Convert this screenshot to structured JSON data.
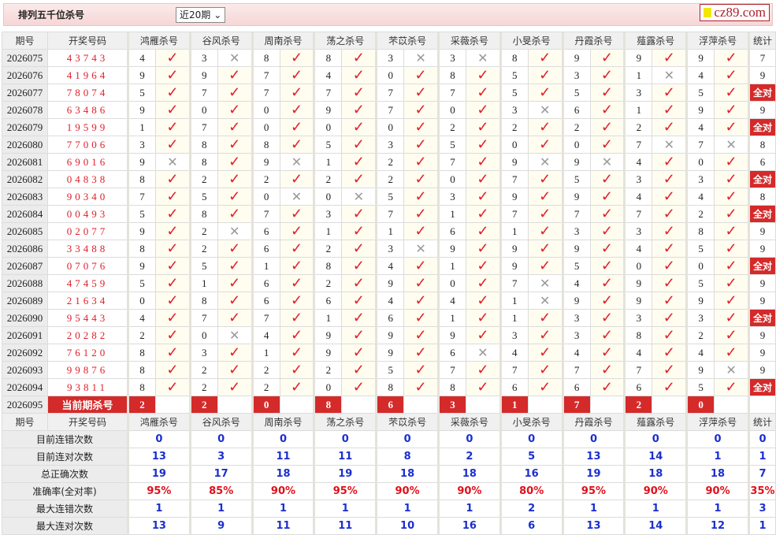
{
  "header": {
    "title": "排列五千位杀号",
    "period_select": "近20期",
    "logo": "cz89.com"
  },
  "columns": {
    "period": "期号",
    "draw": "开奖号码",
    "stat": "统计",
    "predictors": [
      "鸿雁杀号",
      "谷风杀号",
      "周南杀号",
      "荡之杀号",
      "芣苡杀号",
      "采薇杀号",
      "小旻杀号",
      "丹霞杀号",
      "薤露杀号",
      "浮萍杀号"
    ]
  },
  "marks": {
    "hit": "✓",
    "miss": "✕"
  },
  "all_correct_label": "全对",
  "rows": [
    {
      "period": "2026075",
      "draw": "43743",
      "kills": [
        4,
        3,
        8,
        8,
        3,
        3,
        8,
        9,
        9,
        9
      ],
      "hits": "1011001111",
      "stat": "7"
    },
    {
      "period": "2026076",
      "draw": "41964",
      "kills": [
        9,
        9,
        7,
        4,
        0,
        8,
        5,
        3,
        1,
        4
      ],
      "hits": "1111111101",
      "stat": "9"
    },
    {
      "period": "2026077",
      "draw": "78074",
      "kills": [
        5,
        7,
        7,
        7,
        7,
        7,
        5,
        5,
        3,
        5
      ],
      "hits": "1111111111",
      "stat": "全对"
    },
    {
      "period": "2026078",
      "draw": "63486",
      "kills": [
        9,
        0,
        0,
        9,
        7,
        0,
        3,
        6,
        1,
        9
      ],
      "hits": "1111110111",
      "stat": "9"
    },
    {
      "period": "2026079",
      "draw": "19599",
      "kills": [
        1,
        7,
        0,
        0,
        0,
        2,
        2,
        2,
        2,
        4
      ],
      "hits": "1111111111",
      "stat": "全对"
    },
    {
      "period": "2026080",
      "draw": "77006",
      "kills": [
        3,
        8,
        8,
        5,
        3,
        5,
        0,
        0,
        7,
        7
      ],
      "hits": "1111111100",
      "stat": "8"
    },
    {
      "period": "2026081",
      "draw": "69016",
      "kills": [
        9,
        8,
        9,
        1,
        2,
        7,
        9,
        9,
        4,
        0
      ],
      "hits": "0101110011",
      "stat": "6"
    },
    {
      "period": "2026082",
      "draw": "04838",
      "kills": [
        8,
        2,
        2,
        2,
        2,
        0,
        7,
        5,
        3,
        3
      ],
      "hits": "1111111111",
      "stat": "全对"
    },
    {
      "period": "2026083",
      "draw": "90340",
      "kills": [
        7,
        5,
        0,
        0,
        5,
        3,
        9,
        9,
        4,
        4
      ],
      "hits": "1100111111",
      "stat": "8"
    },
    {
      "period": "2026084",
      "draw": "00493",
      "kills": [
        5,
        8,
        7,
        3,
        7,
        1,
        7,
        7,
        7,
        2
      ],
      "hits": "1111111111",
      "stat": "全对"
    },
    {
      "period": "2026085",
      "draw": "02077",
      "kills": [
        9,
        2,
        6,
        1,
        1,
        6,
        1,
        3,
        3,
        8
      ],
      "hits": "1011111111",
      "stat": "9"
    },
    {
      "period": "2026086",
      "draw": "33488",
      "kills": [
        8,
        2,
        6,
        2,
        3,
        9,
        9,
        9,
        4,
        5
      ],
      "hits": "1111011111",
      "stat": "9"
    },
    {
      "period": "2026087",
      "draw": "07076",
      "kills": [
        9,
        5,
        1,
        8,
        4,
        1,
        9,
        5,
        0,
        0
      ],
      "hits": "1111111111",
      "stat": "全对"
    },
    {
      "period": "2026088",
      "draw": "47459",
      "kills": [
        5,
        1,
        6,
        2,
        9,
        0,
        7,
        4,
        9,
        5
      ],
      "hits": "1111110111",
      "stat": "9"
    },
    {
      "period": "2026089",
      "draw": "21634",
      "kills": [
        0,
        8,
        6,
        6,
        4,
        4,
        1,
        9,
        9,
        9
      ],
      "hits": "1111110111",
      "stat": "9"
    },
    {
      "period": "2026090",
      "draw": "95443",
      "kills": [
        4,
        7,
        7,
        1,
        6,
        1,
        1,
        3,
        3,
        3
      ],
      "hits": "1111111111",
      "stat": "全对"
    },
    {
      "period": "2026091",
      "draw": "20282",
      "kills": [
        2,
        0,
        4,
        9,
        9,
        9,
        3,
        3,
        8,
        2
      ],
      "hits": "1011111111",
      "stat": "9"
    },
    {
      "period": "2026092",
      "draw": "76120",
      "kills": [
        8,
        3,
        1,
        9,
        9,
        6,
        4,
        4,
        4,
        4
      ],
      "hits": "1111101111",
      "stat": "9"
    },
    {
      "period": "2026093",
      "draw": "99876",
      "kills": [
        8,
        2,
        2,
        2,
        5,
        7,
        7,
        7,
        7,
        9
      ],
      "hits": "1111111110",
      "stat": "9"
    },
    {
      "period": "2026094",
      "draw": "93811",
      "kills": [
        8,
        2,
        2,
        0,
        8,
        8,
        6,
        6,
        6,
        5
      ],
      "hits": "1111111111",
      "stat": "全对"
    }
  ],
  "current": {
    "period": "2026095",
    "label": "当前期杀号",
    "kills": [
      2,
      2,
      0,
      8,
      6,
      3,
      1,
      7,
      2,
      0
    ]
  },
  "stats": [
    {
      "label": "目前连错次数",
      "values": [
        "0",
        "0",
        "0",
        "0",
        "0",
        "0",
        "0",
        "0",
        "0",
        "0",
        "0"
      ],
      "style": "blue"
    },
    {
      "label": "目前连对次数",
      "values": [
        "13",
        "3",
        "11",
        "11",
        "8",
        "2",
        "5",
        "13",
        "14",
        "1",
        "1"
      ],
      "style": "blue"
    },
    {
      "label": "总正确次数",
      "values": [
        "19",
        "17",
        "18",
        "19",
        "18",
        "18",
        "16",
        "19",
        "18",
        "18",
        "7"
      ],
      "style": "blue"
    },
    {
      "label": "准确率(全对率)",
      "values": [
        "95%",
        "85%",
        "90%",
        "95%",
        "90%",
        "90%",
        "80%",
        "95%",
        "90%",
        "90%",
        "35%"
      ],
      "style": "red"
    },
    {
      "label": "最大连错次数",
      "values": [
        "1",
        "1",
        "1",
        "1",
        "1",
        "1",
        "2",
        "1",
        "1",
        "1",
        "3"
      ],
      "style": "blue"
    },
    {
      "label": "最大连对次数",
      "values": [
        "13",
        "9",
        "11",
        "11",
        "10",
        "16",
        "6",
        "13",
        "14",
        "12",
        "1"
      ],
      "style": "blue"
    }
  ],
  "colors": {
    "accent": "#d42a2a",
    "hit": "#e0202a",
    "stat_value": "#1a2fd0"
  }
}
